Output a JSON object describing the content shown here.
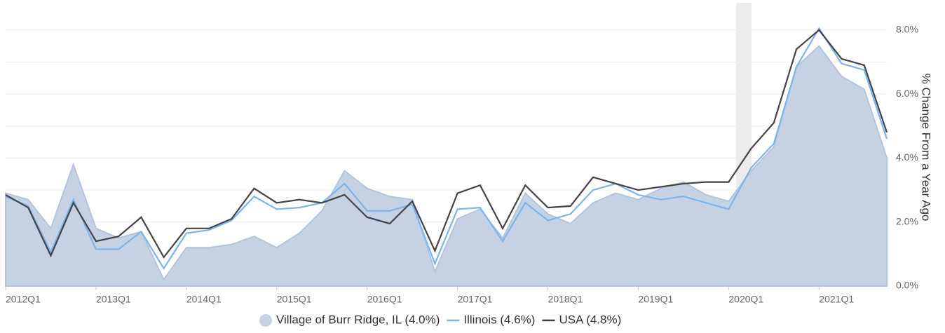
{
  "chart_data": {
    "type": "line",
    "categories": [
      "2012Q1",
      null,
      null,
      null,
      "2013Q1",
      null,
      null,
      null,
      "2014Q1",
      null,
      null,
      null,
      "2015Q1",
      null,
      null,
      null,
      "2016Q1",
      null,
      null,
      null,
      "2017Q1",
      null,
      null,
      null,
      "2018Q1",
      null,
      null,
      null,
      "2019Q1",
      null,
      null,
      null,
      "2020Q1",
      null,
      null,
      null,
      "2021Q1",
      null,
      null,
      null
    ],
    "series": [
      {
        "name": "Village of Burr Ridge, IL (4.0%)",
        "kind": "area",
        "color": "#c5d2e3",
        "values": [
          2.9,
          2.7,
          1.8,
          3.8,
          1.8,
          1.5,
          1.7,
          0.2,
          1.2,
          1.2,
          1.3,
          1.55,
          1.2,
          1.65,
          2.35,
          3.6,
          3.05,
          2.8,
          2.7,
          0.45,
          2.1,
          2.4,
          1.5,
          2.9,
          2.25,
          1.95,
          2.6,
          2.9,
          2.7,
          3.05,
          3.25,
          2.85,
          2.65,
          3.6,
          4.35,
          6.85,
          7.5,
          6.55,
          6.15,
          4.0
        ]
      },
      {
        "name": "Illinois (4.6%)",
        "kind": "line",
        "color": "#7cb5ec",
        "values": [
          2.8,
          2.5,
          1.05,
          2.7,
          1.15,
          1.15,
          1.7,
          0.55,
          1.65,
          1.75,
          2.05,
          2.8,
          2.4,
          2.45,
          2.6,
          3.2,
          2.35,
          2.35,
          2.55,
          0.7,
          2.4,
          2.45,
          1.4,
          2.6,
          2.05,
          2.25,
          3.0,
          3.2,
          2.85,
          2.7,
          2.8,
          2.6,
          2.4,
          3.7,
          4.45,
          6.85,
          8.05,
          6.95,
          6.75,
          4.6
        ]
      },
      {
        "name": "USA (4.8%)",
        "kind": "line",
        "color": "#434348",
        "values": [
          2.85,
          2.45,
          0.95,
          2.6,
          1.4,
          1.55,
          2.15,
          0.9,
          1.8,
          1.8,
          2.1,
          3.05,
          2.6,
          2.7,
          2.6,
          2.85,
          2.15,
          1.95,
          2.65,
          1.1,
          2.9,
          3.15,
          1.8,
          3.15,
          2.45,
          2.5,
          3.4,
          3.2,
          3.0,
          3.1,
          3.2,
          3.25,
          3.25,
          4.3,
          5.1,
          7.4,
          8.0,
          7.1,
          6.9,
          4.8
        ]
      }
    ],
    "ylabel": "% Change From a Year Ago",
    "ylim": [
      0,
      8.85
    ],
    "yticks": [
      {
        "value": 0,
        "label": "0.0%"
      },
      {
        "value": 2,
        "label": "2.0%"
      },
      {
        "value": 4,
        "label": "4.0%"
      },
      {
        "value": 6,
        "label": "6.0%"
      },
      {
        "value": 8,
        "label": "8.0%"
      }
    ],
    "minor_yticks": [
      1,
      3,
      5,
      7
    ],
    "grid": true
  }
}
